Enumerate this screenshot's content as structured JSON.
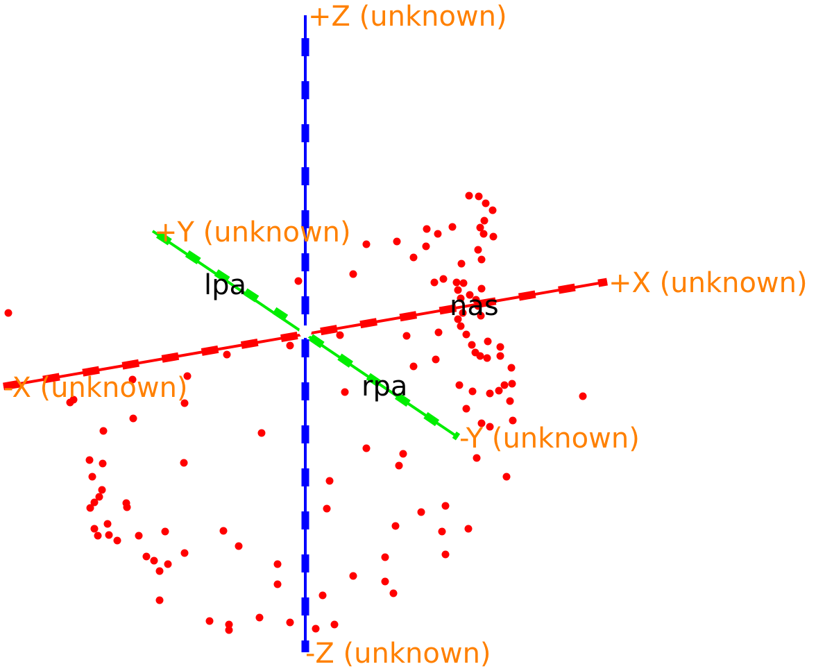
{
  "axes": {
    "z_pos_label": "+Z (unknown)",
    "z_neg_label": "-Z (unknown)",
    "y_pos_label": "+Y (unknown)",
    "y_neg_label": "-Y (unknown)",
    "x_pos_label": "+X (unknown)",
    "x_neg_label": "-X (unknown)"
  },
  "fiducials": {
    "lpa": "lpa",
    "nas": "nas",
    "rpa": "rpa"
  },
  "colors": {
    "x_axis": "#ff0000",
    "y_axis": "#00ee00",
    "z_axis": "#0000ff",
    "axis_label": "#ff8000",
    "points": "#ff0000"
  }
}
